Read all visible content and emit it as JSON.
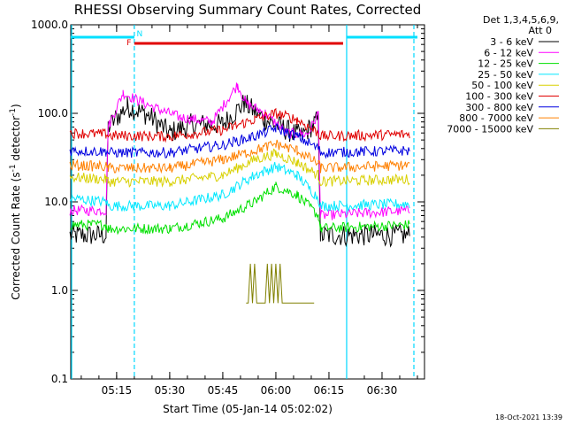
{
  "chart_data": {
    "type": "line",
    "title": "RHESSI Observing Summary Count Rates, Corrected",
    "xlabel": "Start Time (05-Jan-14 05:02:02)",
    "ylabel": "Corrected Count Rate (s⁻¹ detector⁻¹)",
    "ylabel_main": "Corrected Count Rate (s",
    "ylabel_sup1": "-1",
    "ylabel_mid": " detector",
    "ylabel_sup2": "-1",
    "ylabel_end": ")",
    "yscale": "log",
    "ylim": [
      0.1,
      1000.0
    ],
    "xlim": [
      "05:02:02",
      "06:42:00"
    ],
    "x_ticks": [
      "05:15",
      "05:30",
      "05:45",
      "06:00",
      "06:15",
      "06:30"
    ],
    "y_ticks": [
      "0.1",
      "1.0",
      "10.0",
      "100.0",
      "1000.0"
    ],
    "legend_header": [
      "Det 1,3,4,5,6,9,",
      "Att 0"
    ],
    "legend_position": "right",
    "footer": "18-Oct-2021 13:39",
    "flags": [
      {
        "label": "N",
        "color": "#00e0ff",
        "segments": [
          [
            "05:02",
            "05:20"
          ],
          [
            "06:20",
            "06:40"
          ]
        ]
      },
      {
        "label": "F",
        "color": "#e00000",
        "segments": [
          [
            "05:20",
            "06:19"
          ]
        ]
      }
    ],
    "night_boundaries": [
      "05:20",
      "06:20",
      "06:39"
    ],
    "series": [
      {
        "name": "3 - 6 keV",
        "color": "#000000",
        "values": [
          [
            5.03,
            4.2
          ],
          [
            5.2,
            4.2
          ],
          [
            5.21,
            70
          ],
          [
            5.3,
            120
          ],
          [
            5.4,
            95
          ],
          [
            5.5,
            60
          ],
          [
            5.6,
            75
          ],
          [
            5.75,
            75
          ],
          [
            5.85,
            130
          ],
          [
            5.95,
            85
          ],
          [
            6.05,
            65
          ],
          [
            6.12,
            55
          ],
          [
            6.2,
            85
          ],
          [
            6.21,
            4.2
          ],
          [
            6.63,
            4.2
          ]
        ]
      },
      {
        "name": "6 - 12 keV",
        "color": "#ff00ff",
        "values": [
          [
            5.03,
            8
          ],
          [
            5.2,
            8
          ],
          [
            5.21,
            70
          ],
          [
            5.28,
            170
          ],
          [
            5.35,
            140
          ],
          [
            5.45,
            110
          ],
          [
            5.55,
            90
          ],
          [
            5.7,
            80
          ],
          [
            5.82,
            210
          ],
          [
            5.86,
            130
          ],
          [
            5.95,
            100
          ],
          [
            6.05,
            60
          ],
          [
            6.15,
            58
          ],
          [
            6.2,
            100
          ],
          [
            6.21,
            7
          ],
          [
            6.63,
            8
          ]
        ]
      },
      {
        "name": "12 - 25 keV",
        "color": "#00e000",
        "values": [
          [
            5.03,
            5.5
          ],
          [
            5.2,
            5.5
          ],
          [
            5.21,
            5
          ],
          [
            5.5,
            5
          ],
          [
            5.75,
            6.5
          ],
          [
            5.9,
            10
          ],
          [
            6.0,
            15
          ],
          [
            6.1,
            12
          ],
          [
            6.2,
            7
          ],
          [
            6.21,
            5
          ],
          [
            6.63,
            5.5
          ]
        ]
      },
      {
        "name": "25 - 50 keV",
        "color": "#00e8ff",
        "values": [
          [
            5.03,
            11
          ],
          [
            5.2,
            10
          ],
          [
            5.21,
            9
          ],
          [
            5.5,
            9
          ],
          [
            5.75,
            12
          ],
          [
            5.9,
            20
          ],
          [
            6.0,
            25
          ],
          [
            6.1,
            20
          ],
          [
            6.2,
            11
          ],
          [
            6.21,
            9
          ],
          [
            6.63,
            9.5
          ]
        ]
      },
      {
        "name": "50 - 100 keV",
        "color": "#d8d000",
        "values": [
          [
            5.03,
            19
          ],
          [
            5.2,
            18
          ],
          [
            5.21,
            17
          ],
          [
            5.5,
            17
          ],
          [
            5.75,
            20
          ],
          [
            5.9,
            30
          ],
          [
            6.0,
            35
          ],
          [
            6.1,
            28
          ],
          [
            6.2,
            20
          ],
          [
            6.21,
            17
          ],
          [
            6.63,
            18
          ]
        ]
      },
      {
        "name": "100 - 300 keV",
        "color": "#e00000",
        "values": [
          [
            5.03,
            60
          ],
          [
            5.2,
            58
          ],
          [
            5.21,
            56
          ],
          [
            5.5,
            55
          ],
          [
            5.75,
            65
          ],
          [
            5.9,
            85
          ],
          [
            6.0,
            100
          ],
          [
            6.1,
            85
          ],
          [
            6.2,
            60
          ],
          [
            6.21,
            55
          ],
          [
            6.63,
            58
          ]
        ]
      },
      {
        "name": "300 - 800 keV",
        "color": "#0000e0",
        "values": [
          [
            5.03,
            38
          ],
          [
            5.2,
            37
          ],
          [
            5.21,
            36
          ],
          [
            5.5,
            36
          ],
          [
            5.75,
            44
          ],
          [
            5.9,
            55
          ],
          [
            6.0,
            68
          ],
          [
            6.1,
            55
          ],
          [
            6.2,
            40
          ],
          [
            6.21,
            36
          ],
          [
            6.63,
            38
          ]
        ]
      },
      {
        "name": "800 - 7000 keV",
        "color": "#ff8000",
        "values": [
          [
            5.03,
            26
          ],
          [
            5.2,
            25
          ],
          [
            5.21,
            24
          ],
          [
            5.5,
            24
          ],
          [
            5.75,
            30
          ],
          [
            5.9,
            38
          ],
          [
            6.0,
            45
          ],
          [
            6.1,
            38
          ],
          [
            6.2,
            27
          ],
          [
            6.21,
            24
          ],
          [
            6.63,
            26
          ]
        ]
      },
      {
        "name": "7000 - 15000 keV",
        "color": "#808000",
        "values": [
          [
            5.86,
            0.72
          ],
          [
            5.87,
            0.72
          ],
          [
            5.88,
            2.0
          ],
          [
            5.89,
            0.72
          ],
          [
            5.9,
            2.0
          ],
          [
            5.91,
            0.72
          ],
          [
            5.95,
            0.72
          ],
          [
            5.96,
            2.0
          ],
          [
            5.97,
            0.72
          ],
          [
            5.98,
            2.0
          ],
          [
            5.99,
            0.72
          ],
          [
            6.0,
            2.0
          ],
          [
            6.01,
            0.72
          ],
          [
            6.02,
            2.0
          ],
          [
            6.03,
            0.72
          ],
          [
            6.18,
            0.72
          ]
        ]
      }
    ]
  }
}
